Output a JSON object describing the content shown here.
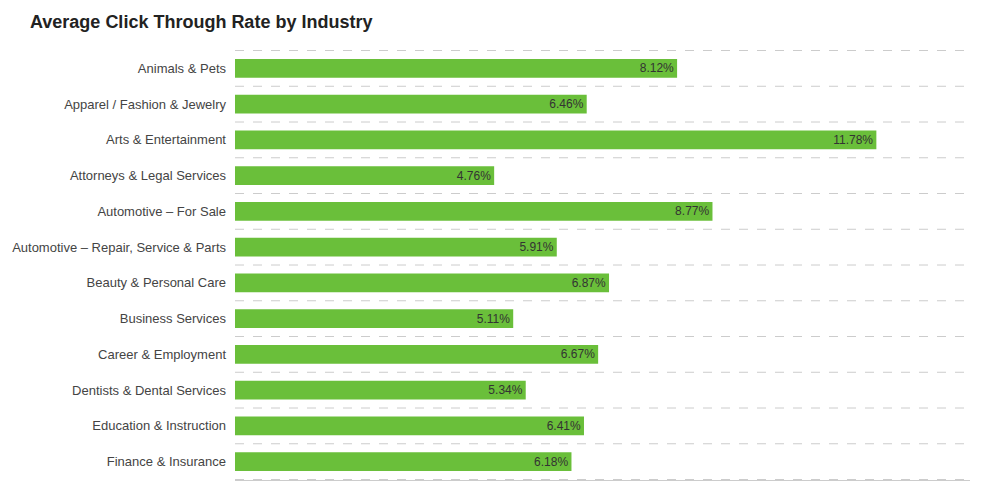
{
  "chart_data": {
    "type": "bar",
    "title": "Average Click Through Rate by Industry",
    "orientation": "horizontal",
    "categories": [
      "Animals & Pets",
      "Apparel / Fashion & Jewelry",
      "Arts & Entertainment",
      "Attorneys & Legal Services",
      "Automotive – For Sale",
      "Automotive – Repair, Service & Parts",
      "Beauty & Personal Care",
      "Business Services",
      "Career & Employment",
      "Dentists & Dental Services",
      "Education & Instruction",
      "Finance & Insurance"
    ],
    "values": [
      8.12,
      6.46,
      11.78,
      4.76,
      8.77,
      5.91,
      6.87,
      5.11,
      6.67,
      5.34,
      6.41,
      6.18
    ],
    "value_labels": [
      "8.12%",
      "6.46%",
      "11.78%",
      "4.76%",
      "8.77%",
      "5.91%",
      "6.87%",
      "5.11%",
      "6.67%",
      "5.34%",
      "6.41%",
      "6.18%"
    ],
    "data_labels": true,
    "color": "#6abf3a",
    "xlim": [
      0,
      13.5
    ],
    "tick_labels": "y",
    "grid": true
  }
}
